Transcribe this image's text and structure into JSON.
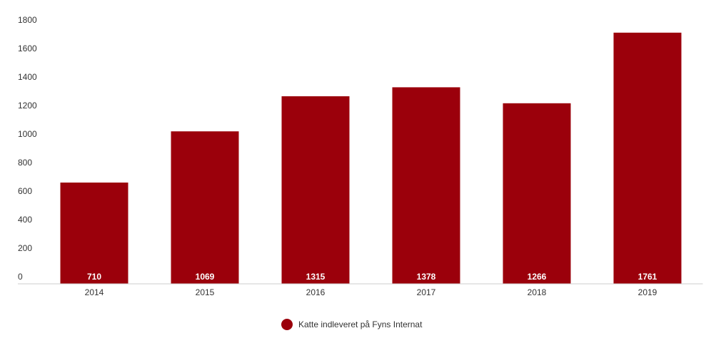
{
  "chart_data": {
    "type": "bar",
    "categories": [
      "2014",
      "2015",
      "2016",
      "2017",
      "2018",
      "2019"
    ],
    "series": [
      {
        "name": "Katte indleveret på Fyns Internat",
        "color": "#9b000b",
        "values": [
          710,
          1069,
          1315,
          1378,
          1266,
          1761
        ]
      }
    ],
    "ylim": [
      0,
      1800
    ],
    "yticks": [
      0,
      200,
      400,
      600,
      800,
      1000,
      1200,
      1400,
      1600,
      1800
    ],
    "grid": false,
    "legend": "bottom"
  }
}
